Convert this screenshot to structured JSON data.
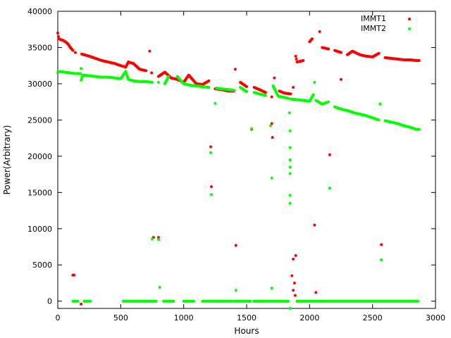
{
  "chart_data": {
    "type": "scatter",
    "title": "",
    "xlabel": "Hours",
    "ylabel": "Power(Arbitrary)",
    "xlim": [
      0,
      3000
    ],
    "ylim": [
      -1000,
      40000
    ],
    "x_ticks": [
      0,
      500,
      1000,
      1500,
      2000,
      2500,
      3000
    ],
    "y_ticks": [
      0,
      5000,
      10000,
      15000,
      20000,
      25000,
      30000,
      35000,
      40000
    ],
    "grid": false,
    "legend_position": "top-right",
    "series": [
      {
        "name": "IMMT1",
        "color": "#ff0000",
        "points": [
          [
            0,
            37000
          ],
          [
            5,
            36500
          ],
          [
            10,
            36200
          ],
          [
            20,
            36100
          ],
          [
            40,
            36000
          ],
          [
            60,
            35800
          ],
          [
            80,
            35500
          ],
          [
            100,
            35000
          ],
          [
            120,
            34600
          ],
          [
            140,
            34300
          ],
          [
            120,
            3600
          ],
          [
            130,
            3600
          ],
          [
            185,
            -400
          ],
          [
            190,
            34100
          ],
          [
            250,
            33800
          ],
          [
            300,
            33500
          ],
          [
            350,
            33200
          ],
          [
            400,
            33000
          ],
          [
            450,
            32800
          ],
          [
            500,
            32500
          ],
          [
            540,
            32300
          ],
          [
            560,
            33000
          ],
          [
            600,
            32800
          ],
          [
            650,
            32000
          ],
          [
            700,
            31800
          ],
          [
            730,
            34500
          ],
          [
            745,
            31500
          ],
          [
            760,
            8800
          ],
          [
            800,
            8800
          ],
          [
            800,
            31000
          ],
          [
            850,
            31600
          ],
          [
            900,
            30800
          ],
          [
            950,
            30600
          ],
          [
            1000,
            30200
          ],
          [
            1040,
            31200
          ],
          [
            1100,
            30000
          ],
          [
            1150,
            29900
          ],
          [
            1200,
            30400
          ],
          [
            1215,
            21300
          ],
          [
            1220,
            15800
          ],
          [
            1250,
            29300
          ],
          [
            1300,
            29200
          ],
          [
            1350,
            29000
          ],
          [
            1400,
            29000
          ],
          [
            1410,
            32000
          ],
          [
            1415,
            7700
          ],
          [
            1450,
            30200
          ],
          [
            1500,
            29600
          ],
          [
            1540,
            23700
          ],
          [
            1560,
            29500
          ],
          [
            1600,
            29200
          ],
          [
            1650,
            28800
          ],
          [
            1700,
            24500
          ],
          [
            1700,
            28200
          ],
          [
            1705,
            22600
          ],
          [
            1720,
            30800
          ],
          [
            1760,
            29000
          ],
          [
            1800,
            28700
          ],
          [
            1850,
            28600
          ],
          [
            1870,
            29500
          ],
          [
            1860,
            3500
          ],
          [
            1870,
            1500
          ],
          [
            1880,
            2500
          ],
          [
            1885,
            800
          ],
          [
            1890,
            6300
          ],
          [
            1870,
            5800
          ],
          [
            1890,
            33800
          ],
          [
            1900,
            33000
          ],
          [
            1950,
            33200
          ],
          [
            2000,
            35800
          ],
          [
            2020,
            36200
          ],
          [
            2040,
            10500
          ],
          [
            2050,
            1200
          ],
          [
            2080,
            37200
          ],
          [
            2100,
            35000
          ],
          [
            2150,
            34800
          ],
          [
            2160,
            20200
          ],
          [
            2200,
            34600
          ],
          [
            2250,
            34300
          ],
          [
            2250,
            30600
          ],
          [
            2300,
            34000
          ],
          [
            2340,
            34500
          ],
          [
            2400,
            34000
          ],
          [
            2450,
            33800
          ],
          [
            2500,
            33700
          ],
          [
            2550,
            34200
          ],
          [
            2570,
            7800
          ],
          [
            2600,
            33600
          ],
          [
            2650,
            33500
          ],
          [
            2700,
            33400
          ],
          [
            2750,
            33300
          ],
          [
            2800,
            33300
          ],
          [
            2850,
            33200
          ],
          [
            2870,
            33200
          ]
        ]
      },
      {
        "name": "IMMT2",
        "color": "#00ff00",
        "points": [
          [
            0,
            31600
          ],
          [
            20,
            31700
          ],
          [
            50,
            31600
          ],
          [
            100,
            31500
          ],
          [
            140,
            31400
          ],
          [
            180,
            31400
          ],
          [
            185,
            32100
          ],
          [
            185,
            30500
          ],
          [
            200,
            31200
          ],
          [
            250,
            31100
          ],
          [
            300,
            31000
          ],
          [
            350,
            30900
          ],
          [
            400,
            30900
          ],
          [
            450,
            30800
          ],
          [
            500,
            30700
          ],
          [
            540,
            31700
          ],
          [
            560,
            30600
          ],
          [
            600,
            30400
          ],
          [
            650,
            30300
          ],
          [
            700,
            30300
          ],
          [
            750,
            30200
          ],
          [
            750,
            8600
          ],
          [
            800,
            8500
          ],
          [
            810,
            1900
          ],
          [
            800,
            30200
          ],
          [
            850,
            30000
          ],
          [
            880,
            31000
          ],
          [
            950,
            31000
          ],
          [
            1000,
            30000
          ],
          [
            1050,
            29800
          ],
          [
            1100,
            29700
          ],
          [
            1150,
            29600
          ],
          [
            1200,
            29500
          ],
          [
            1215,
            20500
          ],
          [
            1220,
            14700
          ],
          [
            1250,
            27300
          ],
          [
            1260,
            29400
          ],
          [
            1300,
            29300
          ],
          [
            1350,
            29200
          ],
          [
            1400,
            29100
          ],
          [
            1415,
            1500
          ],
          [
            1450,
            29500
          ],
          [
            1500,
            28900
          ],
          [
            1540,
            23800
          ],
          [
            1560,
            28800
          ],
          [
            1600,
            28600
          ],
          [
            1650,
            28400
          ],
          [
            1690,
            24200
          ],
          [
            1700,
            17000
          ],
          [
            1700,
            1800
          ],
          [
            1710,
            29700
          ],
          [
            1750,
            28300
          ],
          [
            1800,
            28100
          ],
          [
            1830,
            28000
          ],
          [
            1840,
            26000
          ],
          [
            1845,
            23500
          ],
          [
            1845,
            21200
          ],
          [
            1845,
            19500
          ],
          [
            1845,
            18500
          ],
          [
            1845,
            17600
          ],
          [
            1845,
            14600
          ],
          [
            1845,
            13500
          ],
          [
            1845,
            -1000
          ],
          [
            1850,
            27900
          ],
          [
            1900,
            27800
          ],
          [
            1950,
            27700
          ],
          [
            2000,
            27600
          ],
          [
            2030,
            28500
          ],
          [
            2040,
            30200
          ],
          [
            2050,
            27700
          ],
          [
            2100,
            27200
          ],
          [
            2150,
            27500
          ],
          [
            2160,
            15600
          ],
          [
            2200,
            26800
          ],
          [
            2250,
            26500
          ],
          [
            2300,
            26300
          ],
          [
            2350,
            26000
          ],
          [
            2400,
            25800
          ],
          [
            2450,
            25600
          ],
          [
            2500,
            25300
          ],
          [
            2550,
            25000
          ],
          [
            2560,
            27200
          ],
          [
            2570,
            5700
          ],
          [
            2600,
            24900
          ],
          [
            2650,
            24700
          ],
          [
            2700,
            24500
          ],
          [
            2750,
            24200
          ],
          [
            2800,
            24000
          ],
          [
            2850,
            23700
          ],
          [
            2870,
            23700
          ]
        ],
        "zero_runs": [
          [
            120,
            160
          ],
          [
            210,
            260
          ],
          [
            520,
            780
          ],
          [
            840,
            920
          ],
          [
            1000,
            1080
          ],
          [
            1150,
            1240
          ],
          [
            1250,
            1380
          ],
          [
            1400,
            1530
          ],
          [
            1560,
            1830
          ],
          [
            1900,
            2860
          ]
        ]
      }
    ]
  }
}
